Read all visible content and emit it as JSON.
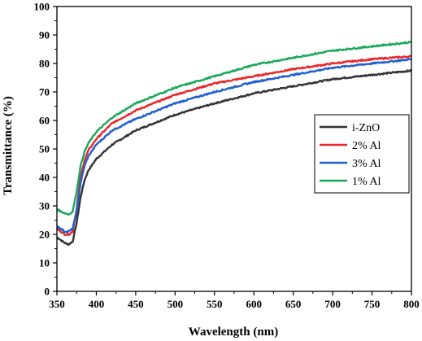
{
  "chart_data": {
    "type": "line",
    "title": "",
    "xlabel": "Wavelength (nm)",
    "ylabel": "Transmittance (%)",
    "xlim": [
      350,
      800
    ],
    "ylim": [
      0,
      100
    ],
    "x_ticks": [
      350,
      400,
      450,
      500,
      550,
      600,
      650,
      700,
      750,
      800
    ],
    "y_ticks": [
      0,
      10,
      20,
      30,
      40,
      50,
      60,
      70,
      80,
      90,
      100
    ],
    "grid": false,
    "legend_position": "right-middle",
    "x": [
      350,
      355,
      360,
      365,
      370,
      375,
      380,
      385,
      390,
      400,
      420,
      450,
      500,
      550,
      600,
      650,
      700,
      750,
      800
    ],
    "series": [
      {
        "name": "i-ZnO",
        "color": "#333333",
        "values": [
          19.0,
          18.0,
          17.0,
          16.5,
          17.5,
          24.0,
          33.0,
          39.0,
          42.5,
          46.5,
          51.5,
          56.5,
          62.0,
          66.0,
          69.5,
          72.0,
          74.5,
          76.0,
          77.5
        ]
      },
      {
        "name": "2% Al",
        "color": "#e8272a",
        "values": [
          22.0,
          21.0,
          20.0,
          20.0,
          21.0,
          29.0,
          40.0,
          46.0,
          49.5,
          53.5,
          59.0,
          63.5,
          69.0,
          73.0,
          75.5,
          78.0,
          80.0,
          81.5,
          82.5
        ]
      },
      {
        "name": "3% Al",
        "color": "#1f5fce",
        "values": [
          23.0,
          22.0,
          21.0,
          21.0,
          22.0,
          28.0,
          38.0,
          44.0,
          47.5,
          51.5,
          56.5,
          60.5,
          66.0,
          70.0,
          73.5,
          76.0,
          78.5,
          80.0,
          81.5
        ]
      },
      {
        "name": "1% Al",
        "color": "#1aa85a",
        "values": [
          29.0,
          28.0,
          27.5,
          27.0,
          28.0,
          35.0,
          44.0,
          49.0,
          52.0,
          56.0,
          61.0,
          66.0,
          71.5,
          75.5,
          79.5,
          82.0,
          84.5,
          86.0,
          87.5
        ]
      }
    ]
  }
}
